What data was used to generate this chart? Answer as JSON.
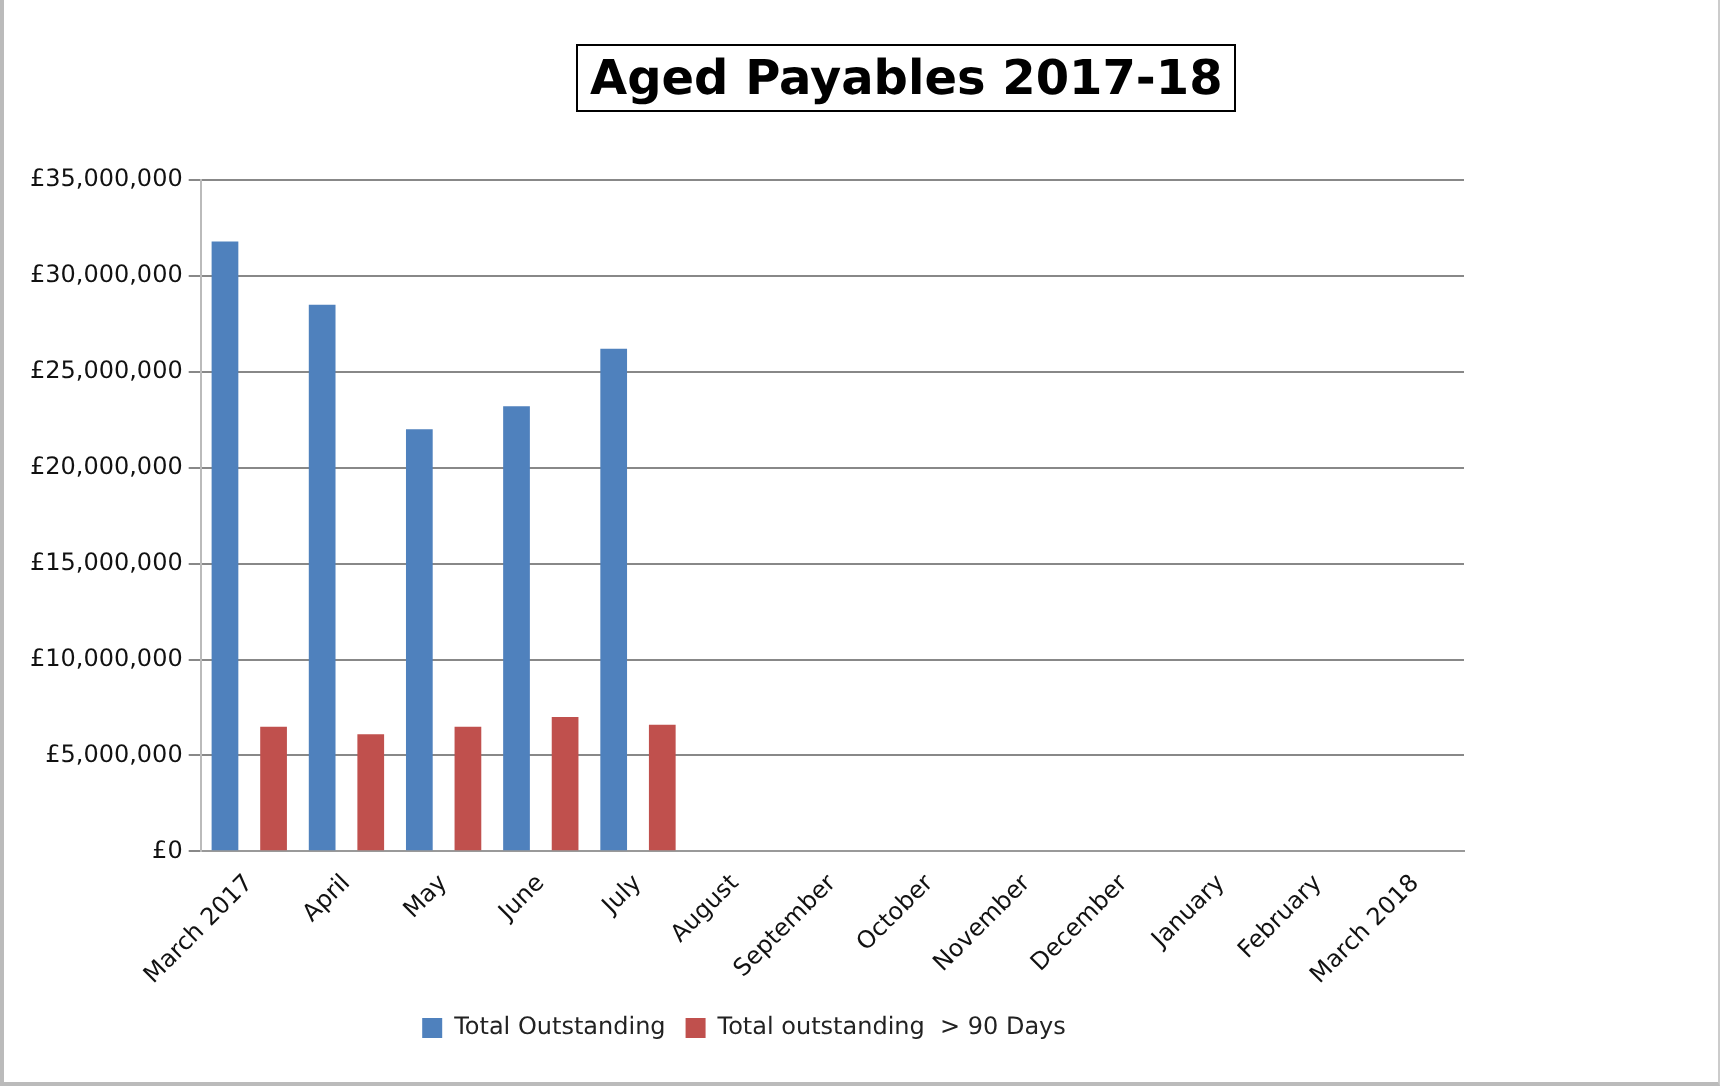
{
  "chart_data": {
    "type": "bar",
    "title": "Aged Payables 2017-18",
    "categories": [
      "March 2017",
      "April",
      "May",
      "June",
      "July",
      "August",
      "September",
      "October",
      "November",
      "December",
      "January",
      "February",
      "March 2018"
    ],
    "series": [
      {
        "name": "Total Outstanding",
        "color": "#4f81bd",
        "values": [
          31800000,
          28500000,
          22000000,
          23200000,
          26200000,
          null,
          null,
          null,
          null,
          null,
          null,
          null,
          null
        ]
      },
      {
        "name": "Total outstanding  > 90 Days",
        "color": "#c0504d",
        "values": [
          6500000,
          6100000,
          6500000,
          7000000,
          6600000,
          null,
          null,
          null,
          null,
          null,
          null,
          null,
          null
        ]
      }
    ],
    "ylim": [
      0,
      35000000
    ],
    "yticks": [
      {
        "value": 0,
        "label": "£0"
      },
      {
        "value": 5000000,
        "label": "£5,000,000"
      },
      {
        "value": 10000000,
        "label": "£10,000,000"
      },
      {
        "value": 15000000,
        "label": "£15,000,000"
      },
      {
        "value": 20000000,
        "label": "£20,000,000"
      },
      {
        "value": 25000000,
        "label": "£25,000,000"
      },
      {
        "value": 30000000,
        "label": "£30,000,000"
      },
      {
        "value": 35000000,
        "label": "£35,000,000"
      }
    ],
    "grid": "y",
    "legend": "bottom"
  }
}
